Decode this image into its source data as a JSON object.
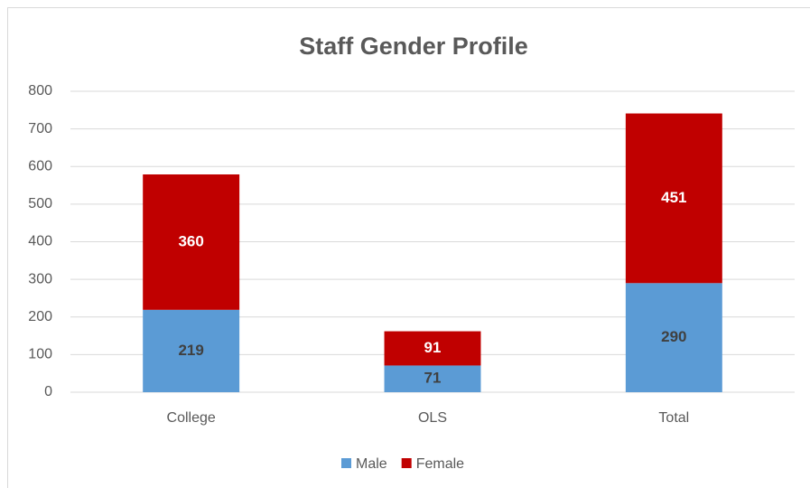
{
  "chart_data": {
    "type": "stacked_bar",
    "title": "Staff Gender Profile",
    "categories": [
      "College",
      "OLS",
      "Total"
    ],
    "series": [
      {
        "name": "Male",
        "color": "#5b9bd5",
        "values": [
          219,
          71,
          290
        ]
      },
      {
        "name": "Female",
        "color": "#c00000",
        "values": [
          360,
          91,
          451
        ]
      }
    ],
    "ylim": [
      0,
      800
    ],
    "yticks": [
      0,
      100,
      200,
      300,
      400,
      500,
      600,
      700,
      800
    ],
    "grid": true,
    "legend": "bottom"
  }
}
